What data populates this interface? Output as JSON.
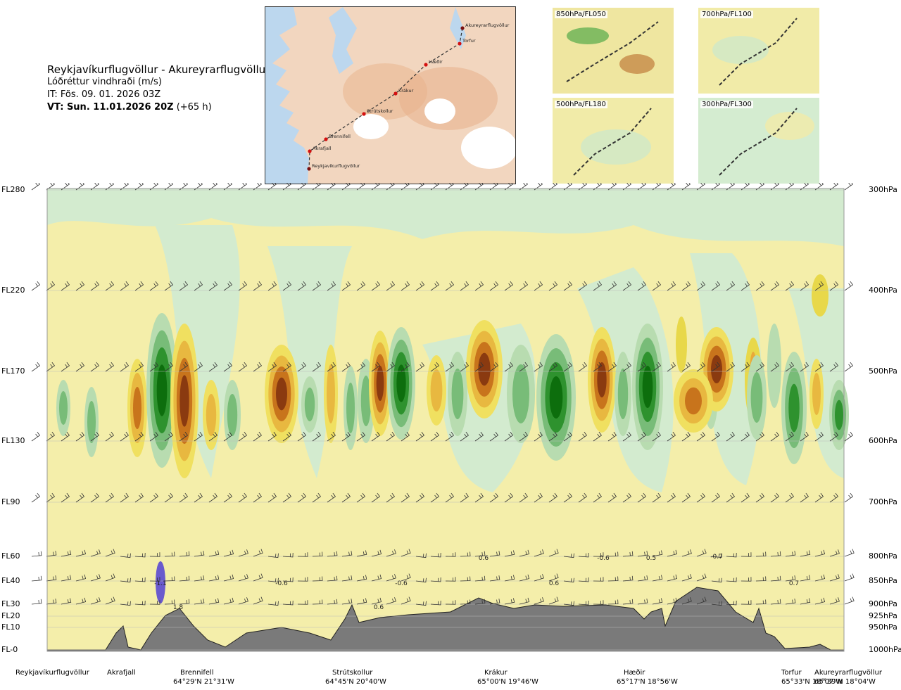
{
  "header": {
    "route": "Reykjavíkurflugvöllur - Akureyrarflugvöllur",
    "product": "Lóðréttur vindhraði (m/s)",
    "issue": "IT: Fös. 09. 01. 2026 03Z",
    "valid_bold": "VT: Sun. 11.01.2026 20Z",
    "valid_offset": " (+65 h)"
  },
  "map": {
    "waypoints": [
      "Akureyrarflugvöllur",
      "Torfur",
      "Hæðir",
      "Krákur",
      "Strútskollur",
      "Brennifell",
      "Akrafjall",
      "Reykjavíkurflugvöllur"
    ]
  },
  "thumbnails": [
    "850hPa/FL050",
    "700hPa/FL100",
    "500hPa/FL180",
    "300hPa/FL300"
  ],
  "colors": {
    "sinking": "#2b8a2b",
    "rising": "#b5651d",
    "terrain": "#7a7a7a"
  },
  "chart_data": {
    "type": "heatmap",
    "title": "Lóðréttur vindhraði (m/s)",
    "y_levels": [
      {
        "fl": "FL280",
        "hpa": "300hPa"
      },
      {
        "fl": "FL220",
        "hpa": "400hPa"
      },
      {
        "fl": "FL170",
        "hpa": "500hPa"
      },
      {
        "fl": "FL130",
        "hpa": "600hPa"
      },
      {
        "fl": "FL90",
        "hpa": "700hPa"
      },
      {
        "fl": "FL60",
        "hpa": "800hPa"
      },
      {
        "fl": "FL40",
        "hpa": "850hPa"
      },
      {
        "fl": "FL30",
        "hpa": "900hPa"
      },
      {
        "fl": "FL20",
        "hpa": "925hPa"
      },
      {
        "fl": "FL10",
        "hpa": "950hPa"
      },
      {
        "fl": "FL-0",
        "hpa": "1000hPa"
      }
    ],
    "waypoints": [
      {
        "name": "Reykjavíkurflugvöllur",
        "coord": ""
      },
      {
        "name": "Akrafjall",
        "coord": ""
      },
      {
        "name": "Brennifell",
        "coord": "64°29'N 21°31'W"
      },
      {
        "name": "Strútskollur",
        "coord": "64°45'N 20°40'W"
      },
      {
        "name": "Krákur",
        "coord": "65°00'N 19°46'W"
      },
      {
        "name": "Hæðir",
        "coord": "65°17'N 18°56'W"
      },
      {
        "name": "Torfur",
        "coord": "65°33'N 18°07'W"
      },
      {
        "name": "Akureyrarflugvöllur",
        "coord": "65°39'N 18°04'W"
      }
    ],
    "extrema_labels": [
      "-1.1",
      "1.8",
      "-0.6",
      "0.6",
      "-0.6",
      "0.6",
      "0.6",
      "-0.6",
      "0.5",
      "-0.7",
      "0.7"
    ]
  }
}
